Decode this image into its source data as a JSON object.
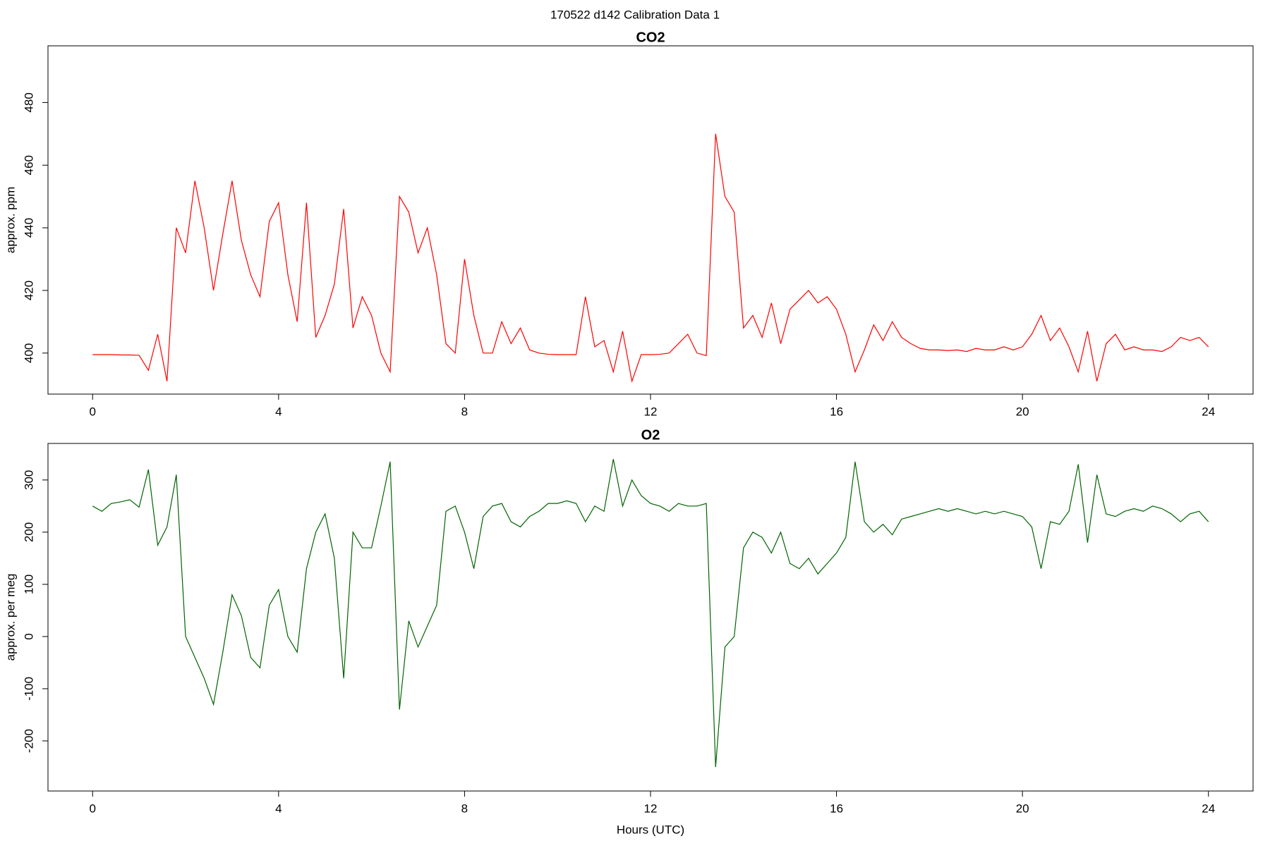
{
  "title": "170522   d142   Calibration Data 1",
  "chart_data": [
    {
      "type": "line",
      "title": "CO2",
      "y_label": "approx. ppm",
      "x": [
        0,
        0.2,
        0.4,
        0.6,
        0.8,
        1,
        1.2,
        1.4,
        1.6,
        1.8,
        2,
        2.2,
        2.4,
        2.6,
        2.8,
        3,
        3.2,
        3.4,
        3.6,
        3.8,
        4,
        4.2,
        4.4,
        4.6,
        4.8,
        5,
        5.2,
        5.4,
        5.6,
        5.8,
        6,
        6.2,
        6.4,
        6.6,
        6.8,
        7,
        7.2,
        7.4,
        7.6,
        7.8,
        8,
        8.2,
        8.4,
        8.6,
        8.8,
        9,
        9.2,
        9.4,
        9.6,
        9.8,
        10,
        10.2,
        10.4,
        10.6,
        10.8,
        11,
        11.2,
        11.4,
        11.6,
        11.8,
        12,
        12.2,
        12.4,
        12.6,
        12.8,
        13,
        13.2,
        13.4,
        13.6,
        13.8,
        14,
        14.2,
        14.4,
        14.6,
        14.8,
        15,
        15.2,
        15.4,
        15.6,
        15.8,
        16,
        16.2,
        16.4,
        16.6,
        16.8,
        17,
        17.2,
        17.4,
        17.6,
        17.8,
        18,
        18.2,
        18.4,
        18.6,
        18.8,
        19,
        19.2,
        19.4,
        19.6,
        19.8,
        20,
        20.2,
        20.4,
        20.6,
        20.8,
        21,
        21.2,
        21.4,
        21.6,
        21.8,
        22,
        22.2,
        22.4,
        22.6,
        22.8,
        23,
        23.2,
        23.4,
        23.6,
        23.8,
        24
      ],
      "series": [
        {
          "name": "CO2",
          "color": "#ff0000",
          "values": [
            399.5,
            399.5,
            399.5,
            399.4,
            399.4,
            399.3,
            394.5,
            406,
            391,
            440,
            432,
            455,
            440,
            420,
            438,
            455,
            436,
            425,
            418,
            442,
            448,
            425,
            410,
            448,
            405,
            412,
            422,
            446,
            408,
            418,
            412,
            400,
            394,
            450,
            445,
            432,
            440,
            425,
            403,
            400,
            430,
            412,
            400,
            400,
            410,
            403,
            408,
            401,
            400,
            399.6,
            399.5,
            399.5,
            399.5,
            418,
            402,
            404,
            394,
            407,
            391,
            399.5,
            399.5,
            399.6,
            400,
            403,
            406,
            400,
            399.2,
            470,
            450,
            445,
            408,
            412,
            405,
            416,
            403,
            414,
            417,
            420,
            416,
            418,
            414,
            406,
            394,
            401,
            409,
            404,
            410,
            405,
            403,
            401.5,
            401,
            401,
            400.8,
            401,
            400.5,
            401.5,
            401,
            401,
            402,
            401,
            402,
            406,
            412,
            404,
            408,
            402,
            394,
            407,
            391,
            403,
            406,
            401,
            402,
            401,
            401,
            400.5,
            402,
            405,
            404,
            405,
            402
          ]
        }
      ],
      "xlim": [
        -0.96,
        24.96
      ],
      "xticks": [
        0,
        4,
        8,
        12,
        16,
        20,
        24
      ],
      "ylim": [
        386.9,
        498.1
      ],
      "yticks": [
        400,
        420,
        440,
        460,
        480
      ]
    },
    {
      "type": "line",
      "title": "O2",
      "y_label": "approx. per meg",
      "x_label": "Hours (UTC)",
      "x": [
        0,
        0.2,
        0.4,
        0.6,
        0.8,
        1,
        1.2,
        1.4,
        1.6,
        1.8,
        2,
        2.2,
        2.4,
        2.6,
        2.8,
        3,
        3.2,
        3.4,
        3.6,
        3.8,
        4,
        4.2,
        4.4,
        4.6,
        4.8,
        5,
        5.2,
        5.4,
        5.6,
        5.8,
        6,
        6.2,
        6.4,
        6.6,
        6.8,
        7,
        7.2,
        7.4,
        7.6,
        7.8,
        8,
        8.2,
        8.4,
        8.6,
        8.8,
        9,
        9.2,
        9.4,
        9.6,
        9.8,
        10,
        10.2,
        10.4,
        10.6,
        10.8,
        11,
        11.2,
        11.4,
        11.6,
        11.8,
        12,
        12.2,
        12.4,
        12.6,
        12.8,
        13,
        13.2,
        13.4,
        13.6,
        13.8,
        14,
        14.2,
        14.4,
        14.6,
        14.8,
        15,
        15.2,
        15.4,
        15.6,
        15.8,
        16,
        16.2,
        16.4,
        16.6,
        16.8,
        17,
        17.2,
        17.4,
        17.6,
        17.8,
        18,
        18.2,
        18.4,
        18.6,
        18.8,
        19,
        19.2,
        19.4,
        19.6,
        19.8,
        20,
        20.2,
        20.4,
        20.6,
        20.8,
        21,
        21.2,
        21.4,
        21.6,
        21.8,
        22,
        22.2,
        22.4,
        22.6,
        22.8,
        23,
        23.2,
        23.4,
        23.6,
        23.8,
        24
      ],
      "series": [
        {
          "name": "O2",
          "color": "#006400",
          "values": [
            250,
            240,
            255,
            258,
            262,
            248,
            320,
            175,
            210,
            310,
            0,
            -40,
            -80,
            -130,
            -30,
            80,
            40,
            -40,
            -60,
            60,
            90,
            0,
            -30,
            130,
            200,
            235,
            150,
            -80,
            200,
            170,
            170,
            250,
            335,
            -140,
            30,
            -20,
            20,
            60,
            240,
            250,
            200,
            130,
            230,
            250,
            255,
            220,
            210,
            230,
            240,
            255,
            255,
            260,
            255,
            220,
            250,
            240,
            340,
            250,
            300,
            270,
            255,
            250,
            240,
            255,
            250,
            250,
            255,
            -250,
            -20,
            0,
            170,
            200,
            190,
            160,
            200,
            140,
            130,
            150,
            120,
            140,
            160,
            190,
            335,
            220,
            200,
            215,
            195,
            225,
            230,
            235,
            240,
            245,
            240,
            245,
            240,
            235,
            240,
            235,
            240,
            235,
            230,
            210,
            130,
            220,
            215,
            240,
            330,
            180,
            310,
            235,
            230,
            240,
            245,
            240,
            250,
            245,
            235,
            220,
            235,
            240,
            220
          ]
        }
      ],
      "xlim": [
        -0.96,
        24.96
      ],
      "xticks": [
        0,
        4,
        8,
        12,
        16,
        20,
        24
      ],
      "ylim": [
        -296,
        370
      ],
      "yticks": [
        -200,
        -100,
        0,
        100,
        200,
        300
      ]
    }
  ]
}
